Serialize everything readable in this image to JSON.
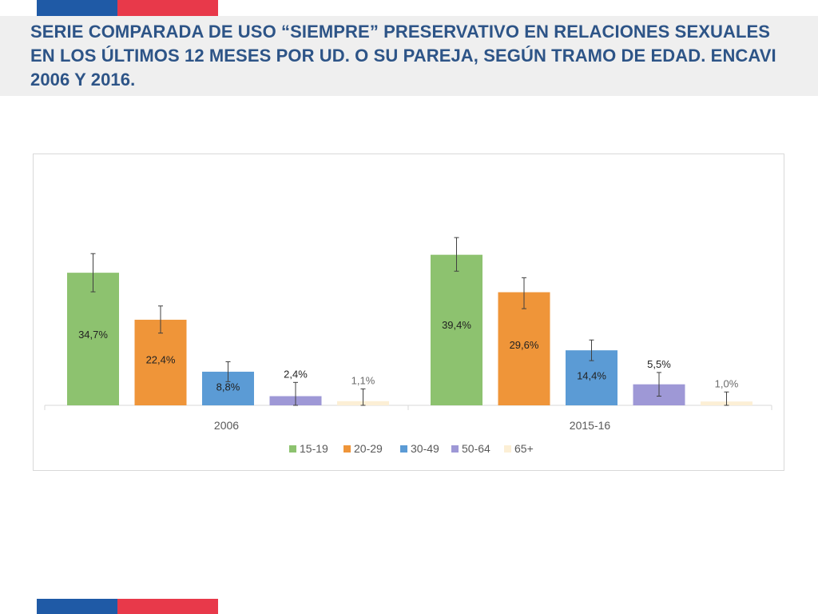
{
  "title": "SERIE COMPARADA DE USO “SIEMPRE” PRESERVATIVO EN RELACIONES SEXUALES EN LOS ÚLTIMOS 12 MESES POR UD. O SU PAREJA, SEGÚN TRAMO DE EDAD. ENCAVI 2006 Y 2016.",
  "colors": {
    "title": "#2d5487",
    "flag_blue": "#1f5aa6",
    "flag_red": "#e8394a",
    "title_band": "#efefef"
  },
  "chart_data": {
    "type": "bar",
    "title": "",
    "xlabel": "",
    "ylabel": "",
    "ylim": [
      0,
      45
    ],
    "grid": false,
    "legend_position": "bottom",
    "categories": [
      "2006",
      "2015-16"
    ],
    "series": [
      {
        "name": "15-19",
        "color": "#8dc26f",
        "values": [
          34.7,
          39.4
        ],
        "labels": [
          "34,7%",
          "39,4%"
        ],
        "error_low": [
          5.0,
          4.3
        ],
        "error_high": [
          5.0,
          4.5
        ]
      },
      {
        "name": "20-29",
        "color": "#ef9539",
        "values": [
          22.4,
          29.6
        ],
        "labels": [
          "22,4%",
          "29,6%"
        ],
        "error_low": [
          3.5,
          4.3
        ],
        "error_high": [
          3.6,
          3.8
        ]
      },
      {
        "name": "30-49",
        "color": "#5b9bd5",
        "values": [
          8.8,
          14.4
        ],
        "labels": [
          "8,8%",
          "14,4%"
        ],
        "error_low": [
          2.6,
          2.7
        ],
        "error_high": [
          2.6,
          2.7
        ]
      },
      {
        "name": "50-64",
        "color": "#9e98d6",
        "values": [
          2.4,
          5.5
        ],
        "labels": [
          "2,4%",
          "5,5%"
        ],
        "error_low": [
          2.5,
          3.1
        ],
        "error_high": [
          3.6,
          3.1
        ]
      },
      {
        "name": "65+",
        "color": "#fcefd5",
        "values": [
          1.1,
          1.0
        ],
        "labels": [
          "1,1%",
          "1,0%"
        ],
        "error_low": [
          1.2,
          1.0
        ],
        "error_high": [
          3.2,
          2.5
        ]
      }
    ]
  }
}
